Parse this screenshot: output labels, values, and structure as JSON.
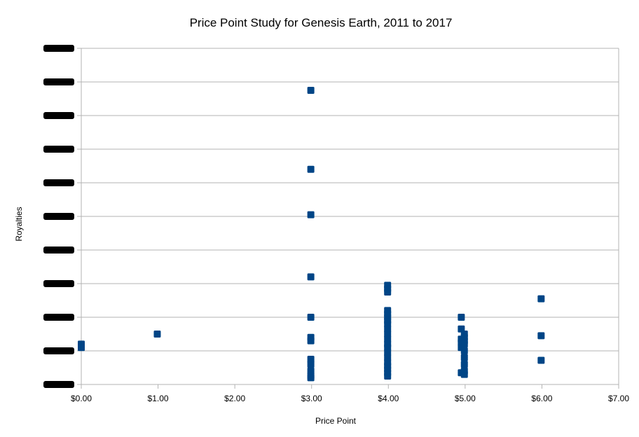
{
  "chart_data": {
    "type": "scatter",
    "title": "Price Point Study for Genesis Earth, 2011 to 2017",
    "xlabel": "Price Point",
    "ylabel": "Royalties",
    "xlim": [
      0,
      7
    ],
    "ylim": [
      0,
      10
    ],
    "x_ticks": [
      "$0.00",
      "$1.00",
      "$2.00",
      "$3.00",
      "$4.00",
      "$5.00",
      "$6.00",
      "$7.00"
    ],
    "y_ticks_redacted": true,
    "y_tick_count": 11,
    "grid": true,
    "legend": "none",
    "marker_color": "#004586",
    "points": [
      {
        "x": 0.0,
        "y": 1.2
      },
      {
        "x": 0.0,
        "y": 1.1
      },
      {
        "x": 0.99,
        "y": 1.5
      },
      {
        "x": 2.99,
        "y": 8.75
      },
      {
        "x": 2.99,
        "y": 6.4
      },
      {
        "x": 2.99,
        "y": 5.05
      },
      {
        "x": 2.99,
        "y": 3.2
      },
      {
        "x": 2.99,
        "y": 2.0
      },
      {
        "x": 2.99,
        "y": 1.4
      },
      {
        "x": 2.99,
        "y": 1.3
      },
      {
        "x": 2.99,
        "y": 0.75
      },
      {
        "x": 2.99,
        "y": 0.6
      },
      {
        "x": 2.99,
        "y": 0.4
      },
      {
        "x": 2.99,
        "y": 0.25
      },
      {
        "x": 2.99,
        "y": 0.2
      },
      {
        "x": 3.99,
        "y": 2.95
      },
      {
        "x": 3.99,
        "y": 2.85
      },
      {
        "x": 3.99,
        "y": 2.75
      },
      {
        "x": 3.99,
        "y": 2.2
      },
      {
        "x": 3.99,
        "y": 2.1
      },
      {
        "x": 3.99,
        "y": 2.0
      },
      {
        "x": 3.99,
        "y": 1.9
      },
      {
        "x": 3.99,
        "y": 1.8
      },
      {
        "x": 3.99,
        "y": 1.65
      },
      {
        "x": 3.99,
        "y": 1.5
      },
      {
        "x": 3.99,
        "y": 1.35
      },
      {
        "x": 3.99,
        "y": 1.2
      },
      {
        "x": 3.99,
        "y": 1.1
      },
      {
        "x": 3.99,
        "y": 0.95
      },
      {
        "x": 3.99,
        "y": 0.8
      },
      {
        "x": 3.99,
        "y": 0.65
      },
      {
        "x": 3.99,
        "y": 0.55
      },
      {
        "x": 3.99,
        "y": 0.45
      },
      {
        "x": 3.99,
        "y": 0.35
      },
      {
        "x": 3.99,
        "y": 0.25
      },
      {
        "x": 4.95,
        "y": 2.0
      },
      {
        "x": 4.95,
        "y": 1.65
      },
      {
        "x": 4.95,
        "y": 1.35
      },
      {
        "x": 4.95,
        "y": 1.25
      },
      {
        "x": 4.95,
        "y": 1.1
      },
      {
        "x": 4.95,
        "y": 0.35
      },
      {
        "x": 4.99,
        "y": 1.5
      },
      {
        "x": 4.99,
        "y": 1.4
      },
      {
        "x": 4.99,
        "y": 1.3
      },
      {
        "x": 4.99,
        "y": 1.2
      },
      {
        "x": 4.99,
        "y": 1.0
      },
      {
        "x": 4.99,
        "y": 0.8
      },
      {
        "x": 4.99,
        "y": 0.6
      },
      {
        "x": 4.99,
        "y": 0.4
      },
      {
        "x": 4.99,
        "y": 0.3
      },
      {
        "x": 5.99,
        "y": 2.55
      },
      {
        "x": 5.99,
        "y": 1.45
      },
      {
        "x": 5.99,
        "y": 0.72
      }
    ]
  }
}
